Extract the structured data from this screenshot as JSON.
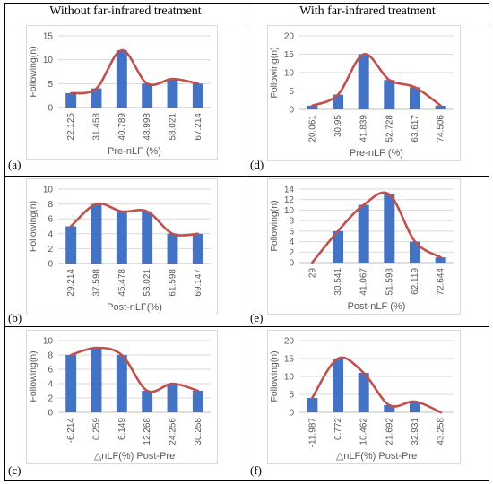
{
  "headers": {
    "left": "Without far-infrared treatment",
    "right": "With far-infrared treatment"
  },
  "colors": {
    "bar": "#4472C4",
    "line": "#C0504D",
    "grid": "#d9d9d9",
    "axis_text": "#595959"
  },
  "chart_data": [
    {
      "type": "bar",
      "panel_label": "(a)",
      "xlabel": "Pre-nLF (%)",
      "ylabel": "Following(n)",
      "categories": [
        "22.125",
        "31.458",
        "40.789",
        "48.998",
        "58.021",
        "67.214"
      ],
      "values": [
        3,
        4,
        12,
        5,
        6,
        5
      ],
      "line_values": [
        3,
        4,
        12,
        5,
        6,
        5
      ],
      "ylim": [
        0,
        15
      ],
      "yticks": [
        0,
        5,
        10,
        15
      ],
      "grid": true
    },
    {
      "type": "bar",
      "panel_label": "(d)",
      "xlabel": "Pre-nLF (%)",
      "ylabel": "Following(n)",
      "categories": [
        "20.061",
        "30.95",
        "41.839",
        "52.728",
        "63.617",
        "74.506"
      ],
      "values": [
        1,
        4,
        15,
        8,
        6,
        1
      ],
      "line_values": [
        1,
        4,
        15,
        8,
        6,
        1
      ],
      "ylim": [
        0,
        20
      ],
      "yticks": [
        0,
        5,
        10,
        15,
        20
      ],
      "grid": true
    },
    {
      "type": "bar",
      "panel_label": "(b)",
      "xlabel": "Post-nLF(%)",
      "ylabel": "Following(n)",
      "categories": [
        "29.214",
        "37.598",
        "45.478",
        "53.021",
        "61.598",
        "69.147"
      ],
      "values": [
        5,
        8,
        7,
        7,
        4,
        4
      ],
      "line_values": [
        5,
        8,
        7,
        7,
        4,
        4
      ],
      "ylim": [
        0,
        10
      ],
      "yticks": [
        0,
        2,
        4,
        6,
        8,
        10
      ],
      "grid": true
    },
    {
      "type": "bar",
      "panel_label": "(e)",
      "xlabel": "Post-nLF (%)",
      "ylabel": "Following(n)",
      "categories": [
        "29",
        "30.541",
        "41.067",
        "51.593",
        "62.119",
        "72.644"
      ],
      "values": [
        0,
        6,
        11,
        13,
        4,
        1
      ],
      "line_values": [
        0,
        6,
        11,
        13,
        4,
        1
      ],
      "ylim": [
        0,
        14
      ],
      "yticks": [
        0,
        2,
        4,
        6,
        8,
        10,
        12,
        14
      ],
      "grid": true
    },
    {
      "type": "bar",
      "panel_label": "(c)",
      "xlabel": "△nLF(%) Post-Pre",
      "ylabel": "Following(n)",
      "categories": [
        "-6.214",
        "0.259",
        "6.149",
        "12.268",
        "24.256",
        "30.258"
      ],
      "values": [
        8,
        9,
        8,
        3,
        4,
        3
      ],
      "line_values": [
        8,
        9,
        8,
        3,
        4,
        3
      ],
      "ylim": [
        0,
        10
      ],
      "yticks": [
        0,
        2,
        4,
        6,
        8,
        10
      ],
      "grid": true
    },
    {
      "type": "bar",
      "panel_label": "(f)",
      "xlabel": "△nLF(%) Post-Pre",
      "ylabel": "Following(n)",
      "categories": [
        "-11.987",
        "0.772",
        "10.462",
        "21.692",
        "32.931",
        "43.258"
      ],
      "values": [
        4,
        15,
        11,
        2,
        3,
        0
      ],
      "line_values": [
        4,
        15,
        11,
        2,
        3,
        0
      ],
      "ylim": [
        0,
        20
      ],
      "yticks": [
        0,
        5,
        10,
        15,
        20
      ],
      "grid": true
    }
  ]
}
